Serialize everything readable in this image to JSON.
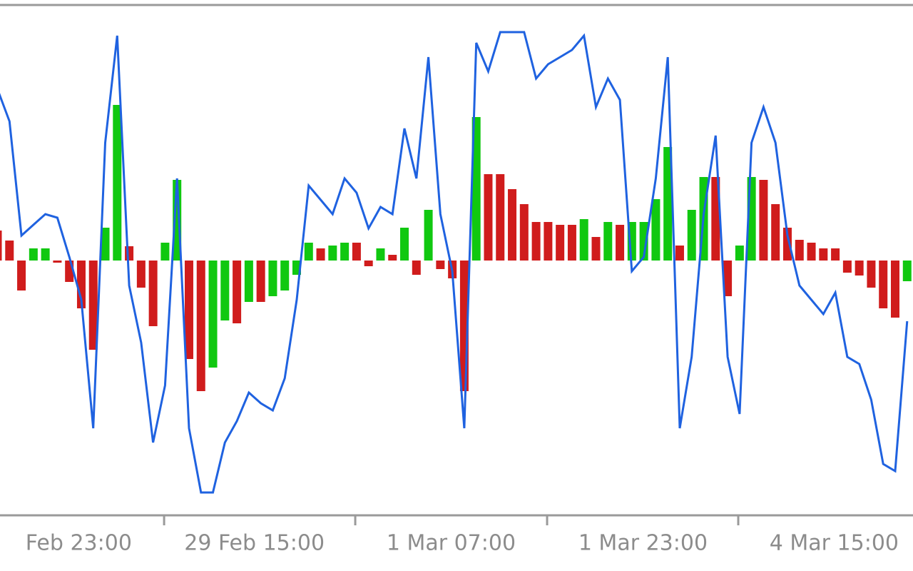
{
  "chart_data": {
    "type": "bar-line",
    "values": [
      42,
      28,
      -42,
      17,
      17,
      -3,
      -30,
      -67,
      -125,
      46,
      218,
      20,
      -38,
      -92,
      25,
      113,
      -138,
      -183,
      -150,
      -84,
      -88,
      -58,
      -58,
      -50,
      -42,
      -20,
      25,
      17,
      21,
      25,
      25,
      -8,
      17,
      8,
      46,
      -20,
      71,
      -12,
      -25,
      -183,
      201,
      121,
      121,
      100,
      79,
      54,
      54,
      50,
      50,
      58,
      33,
      54,
      50,
      54,
      54,
      86,
      159,
      21,
      71,
      117,
      117,
      -50,
      21,
      117,
      113,
      79,
      46,
      29,
      25,
      17,
      17,
      -17,
      -21,
      -38,
      -67,
      -80,
      -29
    ],
    "colors": [
      "#d01c1c",
      "#d01c1c",
      "#d01c1c",
      "#10c810",
      "#10c810",
      "#d01c1c",
      "#d01c1c",
      "#d01c1c",
      "#d01c1c",
      "#10c810",
      "#10c810",
      "#d01c1c",
      "#d01c1c",
      "#d01c1c",
      "#10c810",
      "#10c810",
      "#d01c1c",
      "#d01c1c",
      "#10c810",
      "#10c810",
      "#d01c1c",
      "#10c810",
      "#d01c1c",
      "#10c810",
      "#10c810",
      "#10c810",
      "#10c810",
      "#d01c1c",
      "#10c810",
      "#10c810",
      "#d01c1c",
      "#d01c1c",
      "#10c810",
      "#d01c1c",
      "#10c810",
      "#d01c1c",
      "#10c810",
      "#d01c1c",
      "#d01c1c",
      "#d01c1c",
      "#10c810",
      "#d01c1c",
      "#d01c1c",
      "#d01c1c",
      "#d01c1c",
      "#d01c1c",
      "#d01c1c",
      "#d01c1c",
      "#d01c1c",
      "#10c810",
      "#d01c1c",
      "#10c810",
      "#d01c1c",
      "#10c810",
      "#10c810",
      "#10c810",
      "#10c810",
      "#d01c1c",
      "#10c810",
      "#10c810",
      "#d01c1c",
      "#d01c1c",
      "#10c810",
      "#10c810",
      "#d01c1c",
      "#d01c1c",
      "#d01c1c",
      "#d01c1c",
      "#d01c1c",
      "#d01c1c",
      "#d01c1c",
      "#d01c1c",
      "#d01c1c",
      "#d01c1c",
      "#d01c1c",
      "#d01c1c",
      "#10c810"
    ],
    "line": {
      "color": "#1f62e0",
      "values": [
        240,
        195,
        35,
        50,
        65,
        60,
        5,
        -55,
        -235,
        165,
        315,
        -35,
        -115,
        -255,
        -175,
        115,
        -235,
        -325,
        -325,
        -255,
        -225,
        -185,
        -200,
        -210,
        -165,
        -55,
        105,
        85,
        65,
        115,
        95,
        45,
        75,
        65,
        185,
        115,
        285,
        65,
        -15,
        -235,
        305,
        265,
        320,
        320,
        320,
        255,
        275,
        285,
        295,
        315,
        215,
        255,
        225,
        -15,
        5,
        115,
        285,
        -235,
        -135,
        65,
        175,
        -135,
        -215,
        165,
        215,
        165,
        35,
        -35,
        -55,
        -75,
        -45,
        -135,
        -145,
        -195,
        -285,
        -295,
        -85
      ]
    },
    "ylim": [
      -357,
      358
    ],
    "xticks": [
      {
        "value": -2.18,
        "label": "Feb 23:00"
      },
      {
        "value": 13.92,
        "label": "29 Feb 15:00"
      },
      {
        "value": 29.89,
        "label": "1 Mar 07:00"
      },
      {
        "value": 45.92,
        "label": "1 Mar 23:00"
      },
      {
        "value": 61.89,
        "label": "4 Mar 15:00"
      }
    ]
  }
}
